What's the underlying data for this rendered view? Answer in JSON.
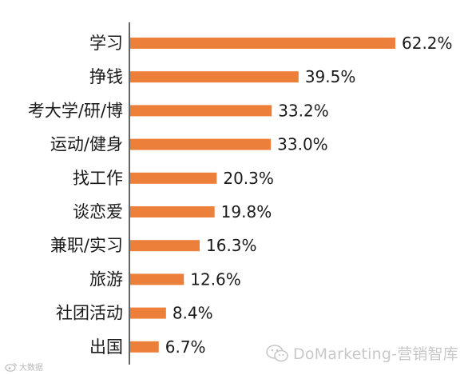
{
  "chart_data": {
    "type": "bar",
    "orientation": "horizontal",
    "categories": [
      "学习",
      "挣钱",
      "考大学/研/博",
      "运动/健身",
      "找工作",
      "谈恋爱",
      "兼职/实习",
      "旅游",
      "社团活动",
      "出国"
    ],
    "values": [
      62.2,
      39.5,
      33.2,
      33.0,
      20.3,
      19.8,
      16.3,
      12.6,
      8.4,
      6.7
    ],
    "value_labels": [
      "62.2%",
      "39.5%",
      "33.2%",
      "33.0%",
      "20.3%",
      "19.8%",
      "16.3%",
      "12.6%",
      "8.4%",
      "6.7%"
    ],
    "bar_color": "#ec7f39",
    "axis_line_color": "#333333",
    "grid": false,
    "xlim": [
      0,
      62.2
    ]
  },
  "watermarks": {
    "right_text": "DoMarketing-营销智库",
    "right_icon": "wechat-icon",
    "left_text": "大数据",
    "left_icon": "weibo-icon"
  }
}
